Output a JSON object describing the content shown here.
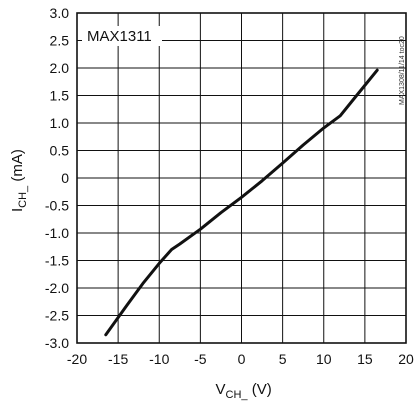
{
  "chart_data": {
    "type": "line",
    "title": "MAX1311",
    "side_code": "MAX1308/11/14 toc20",
    "xlabel": {
      "main": "V",
      "sub": "CH_",
      "unit": " (V)"
    },
    "ylabel": {
      "main": "I",
      "sub": "CH_",
      "unit": " (mA)"
    },
    "xlim": [
      -20,
      20
    ],
    "ylim": [
      -3.0,
      3.0
    ],
    "xticks": [
      "-20",
      "-15",
      "-10",
      "-5",
      "0",
      "5",
      "10",
      "15",
      "20"
    ],
    "yticks": [
      "3.0",
      "2.5",
      "2.0",
      "1.5",
      "1.0",
      "0.5",
      "0",
      "-0.5",
      "-1.0",
      "-1.5",
      "-2.0",
      "-2.5",
      "-3.0"
    ],
    "grid": true,
    "series": [
      {
        "x": [
          -16.5,
          -14,
          -12,
          -10,
          -8.5,
          -7.5,
          -5,
          -2.5,
          0,
          2.5,
          5,
          7.5,
          10,
          12,
          14,
          16.5
        ],
        "y": [
          -2.85,
          -2.33,
          -1.92,
          -1.55,
          -1.3,
          -1.2,
          -0.93,
          -0.63,
          -0.35,
          -0.05,
          0.27,
          0.6,
          0.91,
          1.13,
          1.5,
          1.96
        ]
      }
    ]
  }
}
